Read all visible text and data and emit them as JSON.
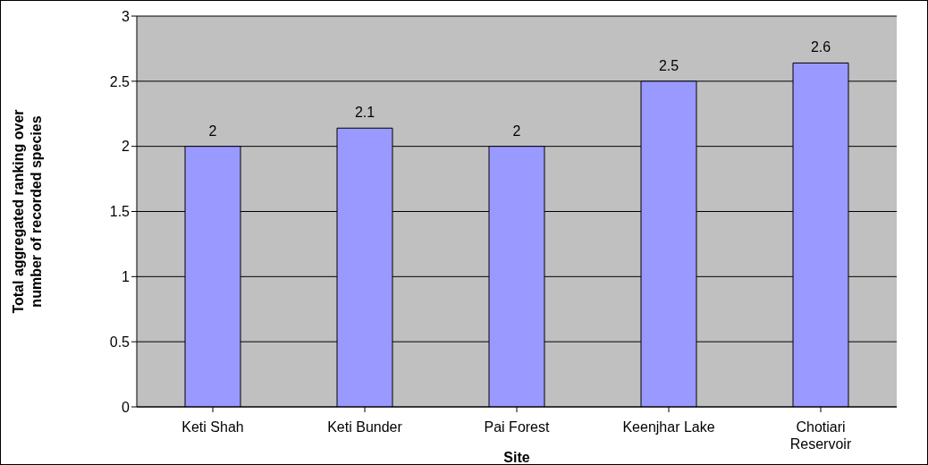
{
  "chart_data": {
    "type": "bar",
    "xlabel": "Site",
    "ylabel": "Total aggregated ranking over number of recorded species",
    "categories": [
      "Keti Shah",
      "Keti Bunder",
      "Pai Forest",
      "Keenjhar Lake",
      "Chotiari Reservoir"
    ],
    "values": [
      2,
      2.14,
      2,
      2.5,
      2.64
    ],
    "value_labels": [
      "2",
      "2.1",
      "2",
      "2.5",
      "2.6"
    ],
    "color": "#9999ff",
    "ylim": [
      0,
      3
    ],
    "yticks": [
      0,
      0.5,
      1,
      1.5,
      2,
      2.5,
      3
    ],
    "grid": "y"
  }
}
